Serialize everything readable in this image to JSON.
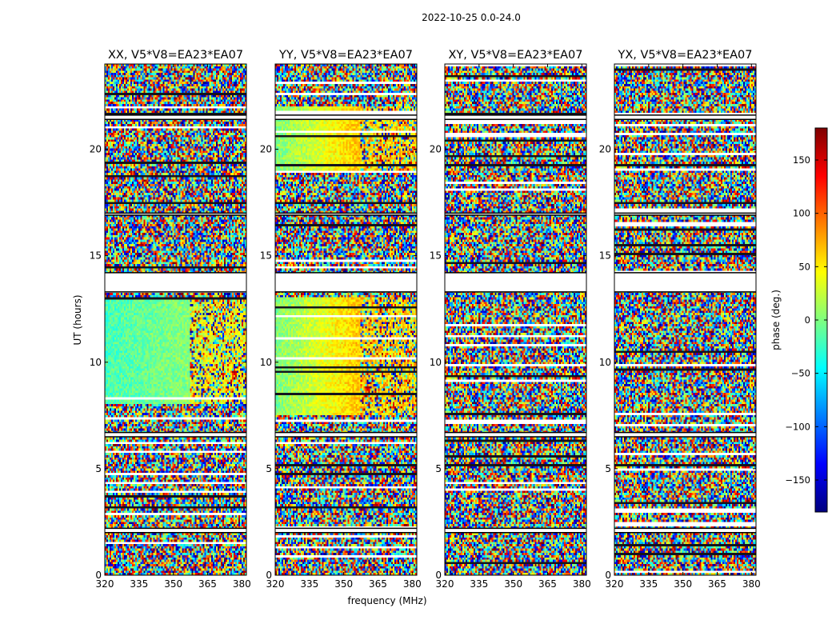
{
  "chart_data": {
    "type": "heatmap",
    "suptitle": "2022-10-25 0.0-24.0",
    "xlabel": "frequency (MHz)",
    "ylabel": "UT (hours)",
    "xlim": [
      320,
      382
    ],
    "ylim": [
      0,
      24
    ],
    "xticks": [
      320,
      335,
      350,
      365,
      380
    ],
    "xtick_labels": [
      "320",
      "335",
      "350",
      "365",
      "380"
    ],
    "yticks": [
      0,
      5,
      10,
      15,
      20
    ],
    "ytick_labels": [
      "0",
      "5",
      "10",
      "15",
      "20"
    ],
    "colorbar": {
      "label": "phase (deg.)",
      "range": [
        -180,
        180
      ],
      "ticks": [
        -150,
        -100,
        -50,
        0,
        50,
        100,
        150
      ],
      "tick_labels": [
        "−150",
        "−100",
        "−50",
        "0",
        "50",
        "100",
        "150"
      ],
      "colormap": [
        "#00007f",
        "#0000ff",
        "#007fff",
        "#00ffff",
        "#7fff7f",
        "#ffff00",
        "#ff7f00",
        "#ff0000",
        "#7f0000"
      ]
    },
    "flagged_ut_bands": [
      [
        2.0,
        2.2
      ],
      [
        6.5,
        6.7
      ],
      [
        13.3,
        14.2
      ],
      [
        16.9,
        17.0
      ],
      [
        21.4,
        21.6
      ]
    ],
    "panels": [
      {
        "title": "XX, V5*V8=EA23*EA07",
        "coherent_ut_bands": [
          [
            8.0,
            13.0
          ]
        ],
        "coherent_phase_deg": -20,
        "phase_gradient_deg": 40
      },
      {
        "title": "YY, V5*V8=EA23*EA07",
        "coherent_ut_bands": [
          [
            7.5,
            13.0
          ],
          [
            19.0,
            22.0
          ]
        ],
        "coherent_phase_deg": 0,
        "phase_gradient_deg": 110
      },
      {
        "title": "XY, V5*V8=EA23*EA07",
        "coherent_ut_bands": [],
        "coherent_phase_deg": 0,
        "phase_gradient_deg": 0
      },
      {
        "title": "YX, V5*V8=EA23*EA07",
        "coherent_ut_bands": [],
        "coherent_phase_deg": 0,
        "phase_gradient_deg": 0
      }
    ]
  }
}
